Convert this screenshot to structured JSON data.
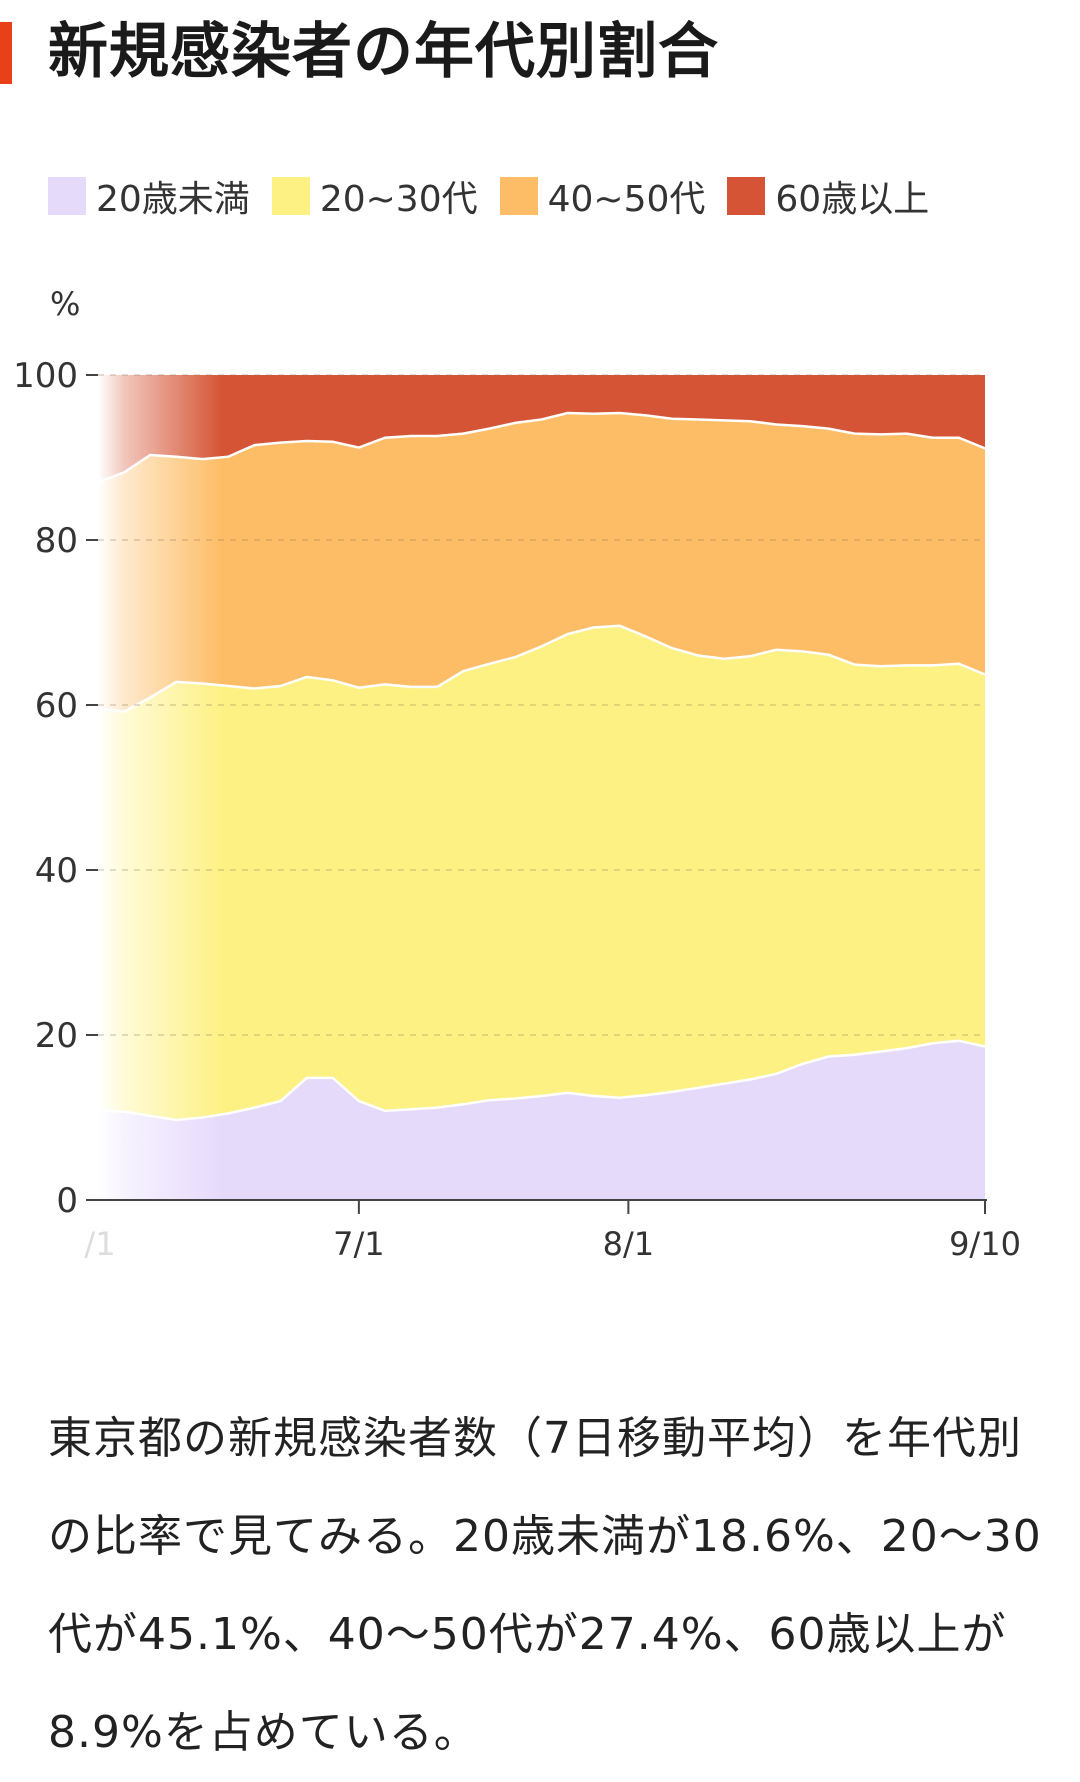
{
  "title": "新規感染者の年代別割合",
  "colors": {
    "accent": "#e8411a",
    "under20": "#e6dafb",
    "age20_30": "#fef184",
    "age40_50": "#fdbd66",
    "over60": "#d55435"
  },
  "legend": [
    {
      "label": "20歳未満",
      "color": "#e6dafb"
    },
    {
      "label": "20~30代",
      "color": "#fef184"
    },
    {
      "label": "40~50代",
      "color": "#fdbd66"
    },
    {
      "label": "60歳以上",
      "color": "#d55435"
    }
  ],
  "description": "東京都の新規感染者数（7日移動平均）を年代別の比率で見てみる。20歳未満が18.6%、20〜30代が45.1%、40〜50代が27.4%、60歳以上が8.9%を占めている。",
  "chart_data": {
    "type": "area",
    "stacked": true,
    "ylabel": "%",
    "ylim": [
      0,
      100
    ],
    "yticks": [
      "0",
      "20",
      "40",
      "60",
      "80",
      "100"
    ],
    "xticks": [
      "7/1",
      "8/1",
      "9/10"
    ],
    "x_partial_first_tick": "/1",
    "grid": "horizontal dashed",
    "x": [
      "6/1",
      "6/4",
      "6/7",
      "6/10",
      "6/13",
      "6/16",
      "6/19",
      "6/22",
      "6/25",
      "6/28",
      "7/1",
      "7/4",
      "7/7",
      "7/10",
      "7/13",
      "7/16",
      "7/19",
      "7/22",
      "7/25",
      "7/28",
      "7/31",
      "8/3",
      "8/6",
      "8/9",
      "8/12",
      "8/15",
      "8/18",
      "8/21",
      "8/24",
      "8/27",
      "8/30",
      "9/2",
      "9/5",
      "9/8",
      "9/10"
    ],
    "series": [
      {
        "name": "20歳未満",
        "values": [
          10.9,
          10.7,
          10.2,
          9.7,
          10.0,
          10.5,
          11.2,
          12.0,
          14.8,
          14.8,
          12.0,
          10.8,
          11.0,
          11.2,
          11.6,
          12.1,
          12.3,
          12.6,
          13.0,
          12.6,
          12.4,
          12.7,
          13.1,
          13.6,
          14.1,
          14.6,
          15.3,
          16.5,
          17.4,
          17.6,
          18.0,
          18.4,
          19.0,
          19.3,
          18.6
        ]
      },
      {
        "name": "20~30代",
        "values": [
          48.7,
          48.5,
          50.7,
          53.1,
          52.6,
          51.8,
          50.8,
          50.3,
          48.6,
          48.2,
          50.1,
          51.7,
          51.2,
          51.0,
          52.5,
          52.9,
          53.5,
          54.5,
          55.6,
          56.8,
          57.2,
          55.6,
          53.8,
          52.4,
          51.5,
          51.3,
          51.4,
          50.0,
          48.7,
          47.3,
          46.7,
          46.4,
          45.8,
          45.7,
          45.1
        ]
      },
      {
        "name": "40~50代",
        "values": [
          27.4,
          29.0,
          29.4,
          27.3,
          27.2,
          27.8,
          29.5,
          29.5,
          28.6,
          28.9,
          29.1,
          29.9,
          30.4,
          30.4,
          28.8,
          28.5,
          28.4,
          27.5,
          26.8,
          25.9,
          25.8,
          26.8,
          27.8,
          28.6,
          28.9,
          28.5,
          27.3,
          27.3,
          27.4,
          28.0,
          28.1,
          28.1,
          27.6,
          27.4,
          27.4
        ]
      },
      {
        "name": "60歳以上",
        "values": [
          13.0,
          11.8,
          9.7,
          9.9,
          10.2,
          9.9,
          8.5,
          8.2,
          8.0,
          8.1,
          8.8,
          7.6,
          7.4,
          7.4,
          7.1,
          6.5,
          5.8,
          5.4,
          4.6,
          4.7,
          4.6,
          4.9,
          5.3,
          5.4,
          5.5,
          5.6,
          6.0,
          6.2,
          6.5,
          7.1,
          7.2,
          7.1,
          7.6,
          7.6,
          8.9
        ]
      }
    ]
  }
}
